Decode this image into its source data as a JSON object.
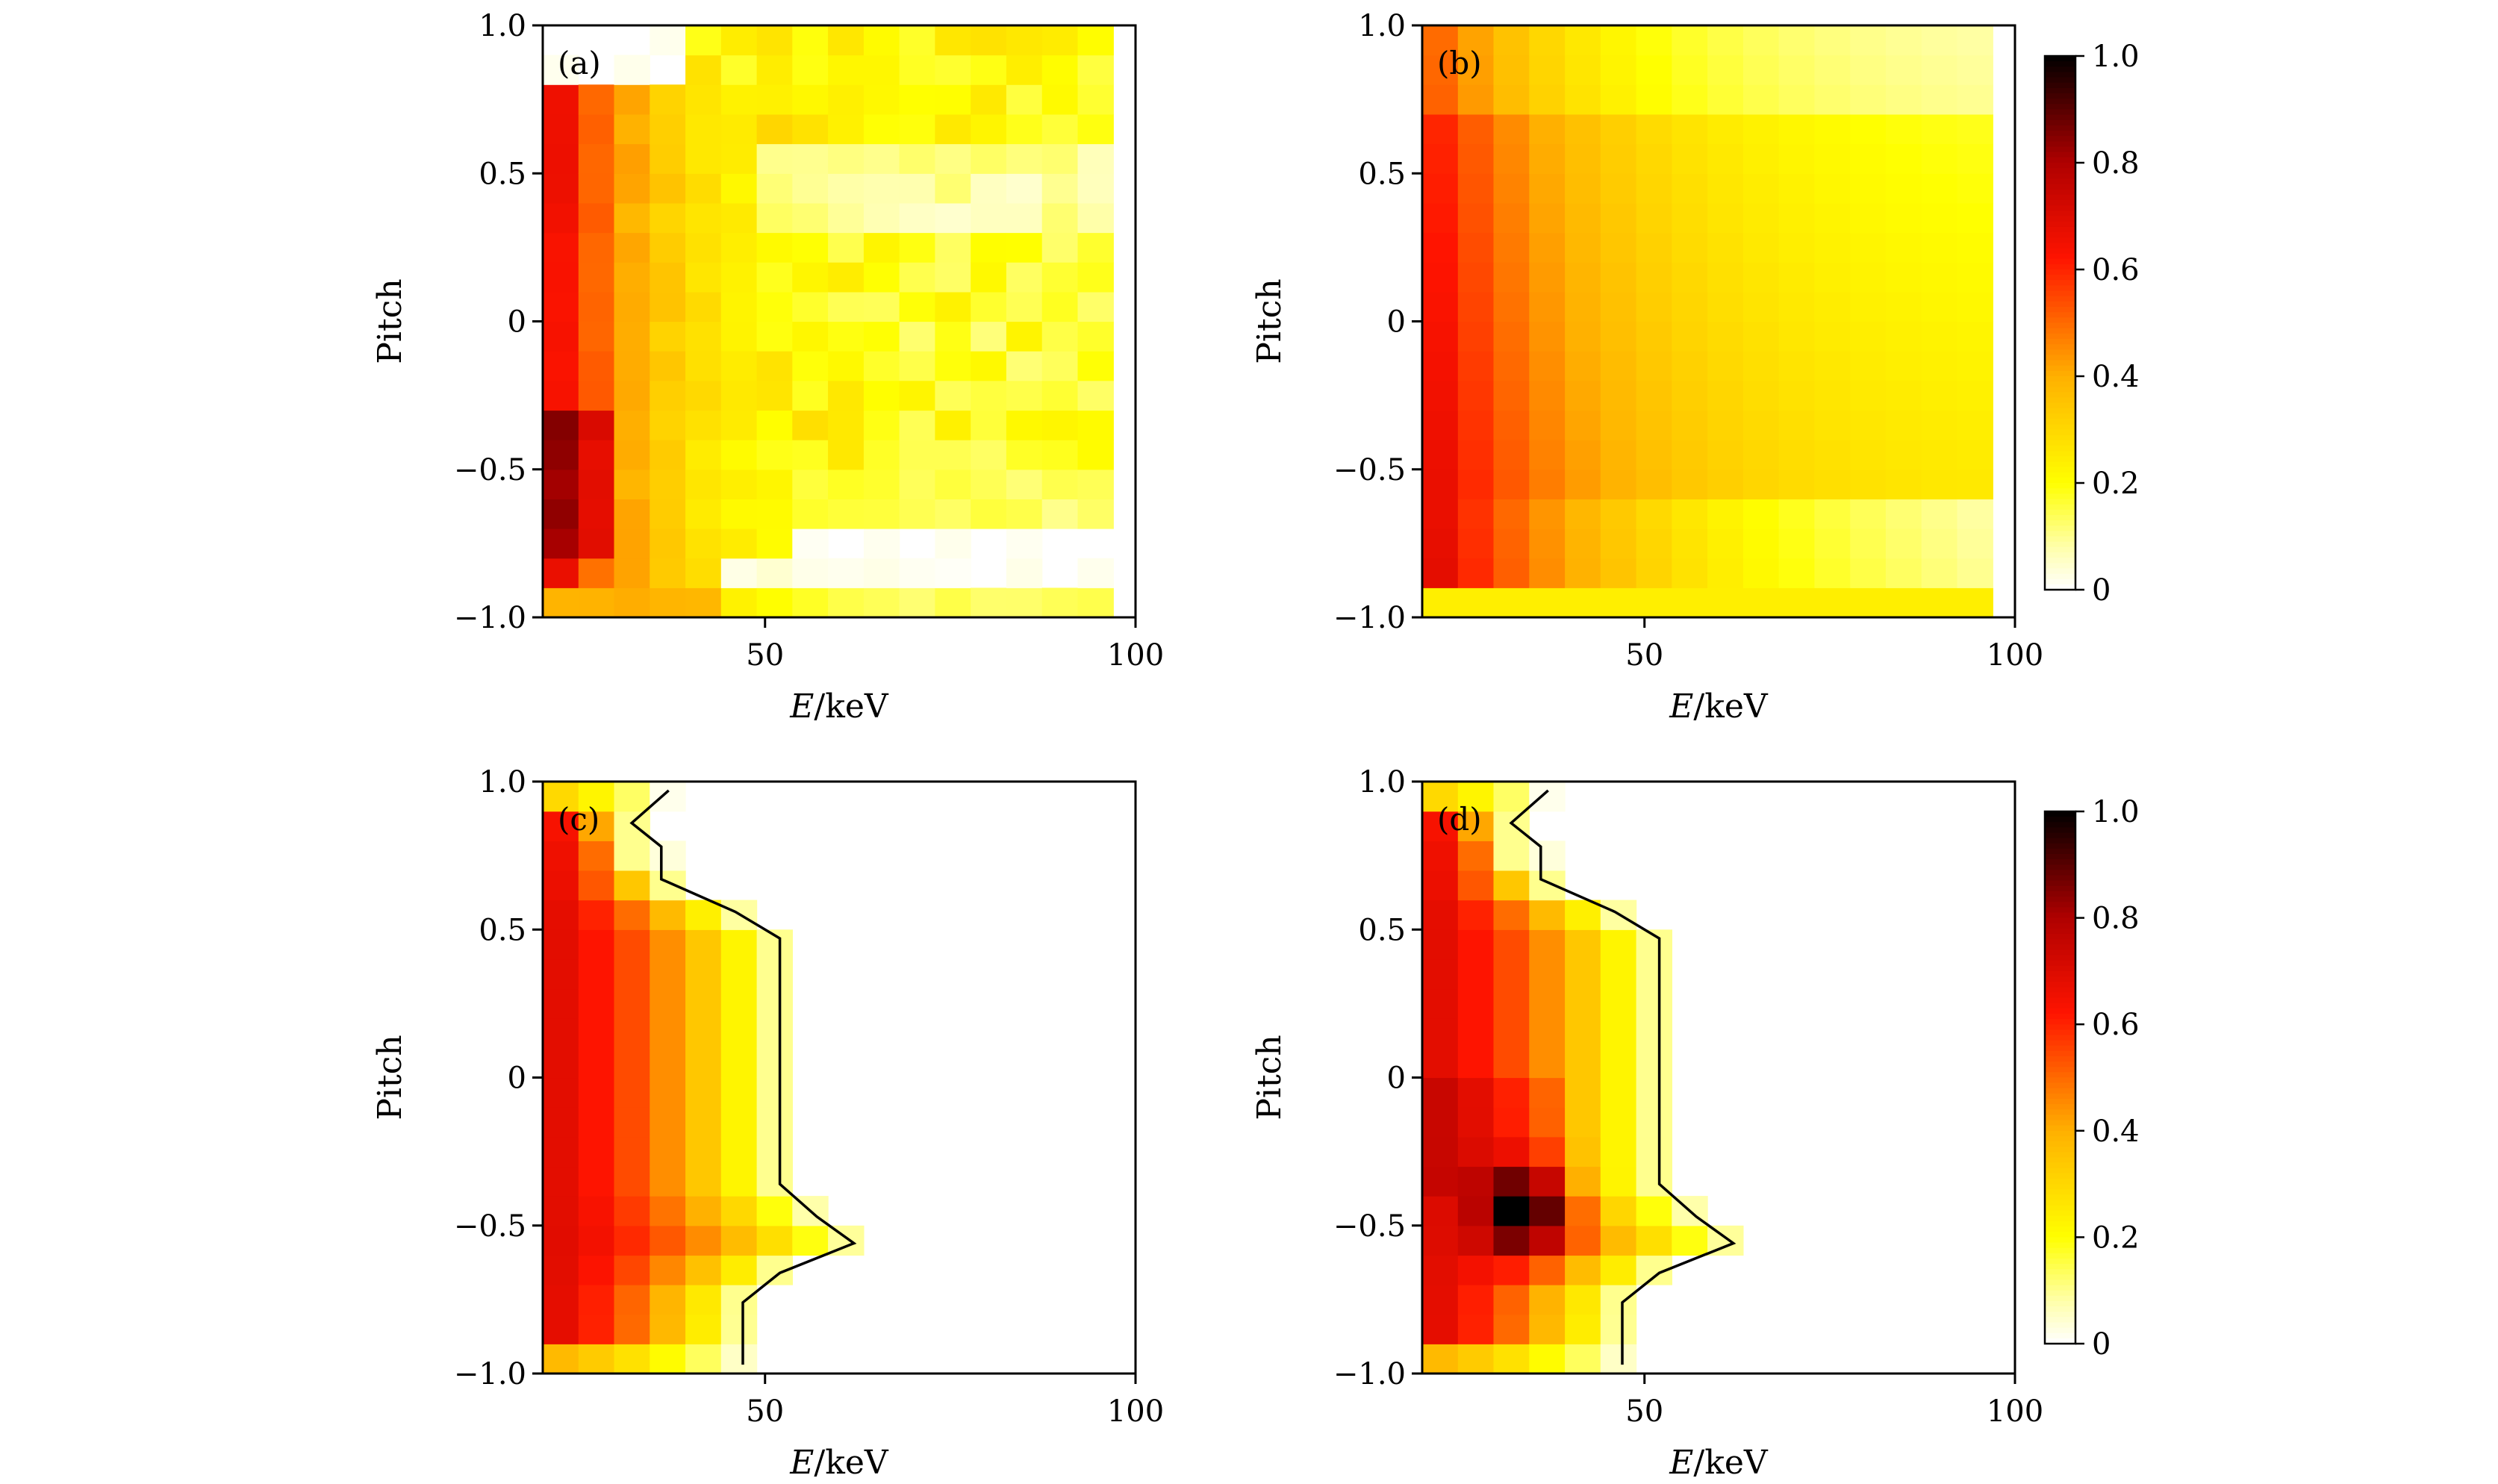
{
  "chart_data": [
    {
      "type": "heatmap",
      "panel_label": "(a)",
      "xlabel_italic": "E",
      "xlabel_unit": "/keV",
      "ylabel": "Pitch",
      "xlim": [
        20,
        100
      ],
      "ylim": [
        -1,
        1
      ],
      "xticks": [
        "50",
        "100"
      ],
      "yticks": [
        "1.0",
        "0.5",
        "0",
        "−0.5",
        "−1.0"
      ],
      "model": "measured",
      "contour": null,
      "colorbar": null
    },
    {
      "type": "heatmap",
      "panel_label": "(b)",
      "xlabel_italic": "E",
      "xlabel_unit": "/keV",
      "ylabel": "Pitch",
      "xlim": [
        20,
        100
      ],
      "ylim": [
        -1,
        1
      ],
      "xticks": [
        "50",
        "100"
      ],
      "yticks": [
        "1.0",
        "0.5",
        "0",
        "−0.5",
        "−1.0"
      ],
      "model": "smooth",
      "contour": null,
      "colorbar": {
        "ticks": [
          "1.0",
          "0.8",
          "0.6",
          "0.4",
          "0.2",
          "0"
        ],
        "range": [
          0,
          1
        ]
      }
    },
    {
      "type": "heatmap",
      "panel_label": "(c)",
      "xlabel_italic": "E",
      "xlabel_unit": "/keV",
      "ylabel": "Pitch",
      "xlim": [
        20,
        100
      ],
      "ylim": [
        -1,
        1
      ],
      "xticks": [
        "50",
        "100"
      ],
      "yticks": [
        "1.0",
        "0.5",
        "0",
        "−0.5",
        "−1.0"
      ],
      "model": "boundary",
      "hotspot": false,
      "contour": [
        [
          37,
          0.97
        ],
        [
          32,
          0.86
        ],
        [
          36,
          0.78
        ],
        [
          36,
          0.67
        ],
        [
          46,
          0.56
        ],
        [
          52,
          0.47
        ],
        [
          52,
          -0.36
        ],
        [
          57,
          -0.47
        ],
        [
          62,
          -0.56
        ],
        [
          52,
          -0.66
        ],
        [
          47,
          -0.76
        ],
        [
          47,
          -0.97
        ]
      ],
      "colorbar": null
    },
    {
      "type": "heatmap",
      "panel_label": "(d)",
      "xlabel_italic": "E",
      "xlabel_unit": "/keV",
      "ylabel": "Pitch",
      "xlim": [
        20,
        100
      ],
      "ylim": [
        -1,
        1
      ],
      "xticks": [
        "50",
        "100"
      ],
      "yticks": [
        "1.0",
        "0.5",
        "0",
        "−0.5",
        "−1.0"
      ],
      "model": "boundary",
      "hotspot": true,
      "contour": [
        [
          37,
          0.97
        ],
        [
          32,
          0.86
        ],
        [
          36,
          0.78
        ],
        [
          36,
          0.67
        ],
        [
          46,
          0.56
        ],
        [
          52,
          0.47
        ],
        [
          52,
          -0.36
        ],
        [
          57,
          -0.47
        ],
        [
          62,
          -0.56
        ],
        [
          52,
          -0.66
        ],
        [
          47,
          -0.76
        ],
        [
          47,
          -0.97
        ]
      ],
      "colorbar": {
        "ticks": [
          "1.0",
          "0.8",
          "0.6",
          "0.4",
          "0.2",
          "0"
        ],
        "range": [
          0,
          1
        ]
      }
    }
  ]
}
